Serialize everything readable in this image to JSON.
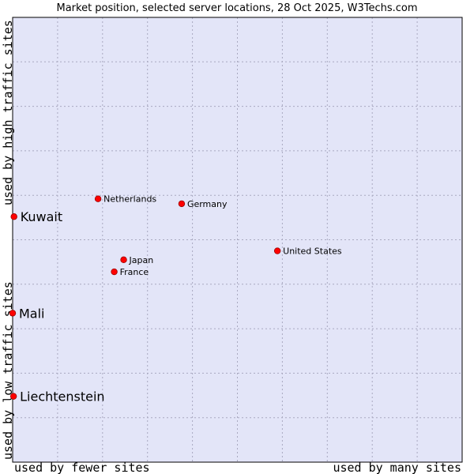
{
  "chart_data": {
    "type": "scatter",
    "title": "Market position, selected server locations, 28 Oct 2025, W3Techs.com",
    "xlabel_left": "used by fewer sites",
    "xlabel_right": "used by many sites",
    "ylabel_top": "used by high traffic sites",
    "ylabel_bottom": "used by low traffic sites",
    "xlim": [
      0,
      100
    ],
    "ylim": [
      0,
      100
    ],
    "grid": true,
    "colors": {
      "plot_background": "#e3e5f8",
      "grid_line": "#a9a9c0",
      "point_fill": "#ff0000",
      "point_stroke": "#990000",
      "frame": "#000000"
    },
    "points": [
      {
        "name": "Netherlands",
        "x": 19.0,
        "y": 59.2,
        "emphasis": false
      },
      {
        "name": "Germany",
        "x": 37.6,
        "y": 58.1,
        "emphasis": false
      },
      {
        "name": "United States",
        "x": 58.9,
        "y": 47.5,
        "emphasis": false
      },
      {
        "name": "Japan",
        "x": 24.7,
        "y": 45.5,
        "emphasis": false
      },
      {
        "name": "France",
        "x": 22.6,
        "y": 42.8,
        "emphasis": false
      },
      {
        "name": "Kuwait",
        "x": 0.3,
        "y": 55.2,
        "emphasis": true
      },
      {
        "name": "Mali",
        "x": 0.0,
        "y": 33.5,
        "emphasis": true
      },
      {
        "name": "Liechtenstein",
        "x": 0.2,
        "y": 14.8,
        "emphasis": true
      }
    ]
  }
}
